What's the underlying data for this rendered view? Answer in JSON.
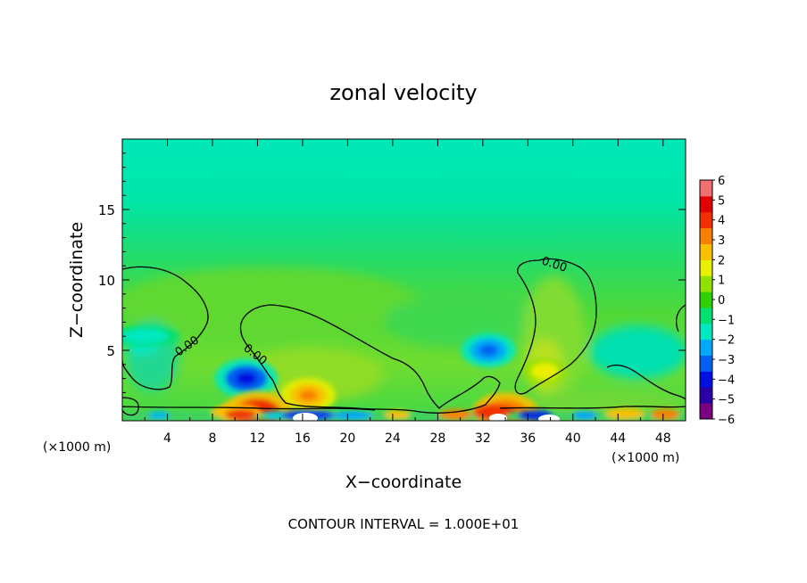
{
  "chart_data": {
    "type": "heatmap",
    "title": "zonal velocity",
    "xlabel": "X−coordinate",
    "ylabel": "Z−coordinate",
    "x_unit_left": "(×1000 m)",
    "x_unit_right": "(×1000 m)",
    "footer": "CONTOUR INTERVAL = 1.000E+01",
    "xlim": [
      0,
      50
    ],
    "ylim": [
      0,
      20
    ],
    "x_ticks": [
      "4",
      "8",
      "12",
      "16",
      "20",
      "24",
      "28",
      "32",
      "36",
      "40",
      "44",
      "48"
    ],
    "y_ticks": [
      "5",
      "10",
      "15"
    ],
    "x_tick_values": [
      4,
      8,
      12,
      16,
      20,
      24,
      28,
      32,
      36,
      40,
      44,
      48
    ],
    "y_tick_values": [
      5,
      10,
      15
    ],
    "colorbar": {
      "range": [
        -6,
        6
      ],
      "tick_labels": [
        "6",
        "5",
        "4",
        "3",
        "2",
        "1",
        "0",
        "−1",
        "−2",
        "−3",
        "−4",
        "−5",
        "−6"
      ],
      "colors": [
        "#7a0080",
        "#2a00a8",
        "#0010e0",
        "#0060f0",
        "#00a8f8",
        "#00e8c0",
        "#00e070",
        "#30d000",
        "#90e000",
        "#e8f000",
        "#f8c000",
        "#f88000",
        "#f03000",
        "#e00000",
        "#f07070"
      ]
    },
    "contour_labels": [
      "0.00",
      "0.00",
      "0.00"
    ],
    "features": [
      {
        "kind": "negative-core",
        "x": 11,
        "z": 3.0,
        "value": -4.5
      },
      {
        "kind": "negative-core",
        "x": 32.5,
        "z": 5.0,
        "value": -3.5
      },
      {
        "kind": "negative-band",
        "x": 2,
        "z": 6.0,
        "value": -1.8
      },
      {
        "kind": "positive-core",
        "x": 16.5,
        "z": 1.8,
        "value": 3.5
      },
      {
        "kind": "positive-core",
        "x": 37.5,
        "z": 3.5,
        "value": 1.8
      },
      {
        "kind": "positive-core",
        "x": 12,
        "z": 0.5,
        "value": 5.5
      },
      {
        "kind": "positive-core",
        "x": 34,
        "z": 0.5,
        "value": 5.0
      }
    ]
  }
}
